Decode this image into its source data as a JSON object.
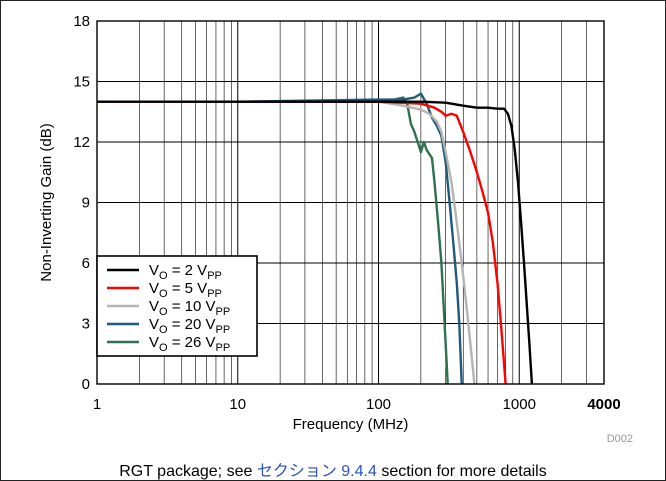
{
  "caption": {
    "before": "RGT package; see ",
    "link_word": "セクション",
    "link_number": "9.4.4",
    "after": " section for more details"
  },
  "colors": {
    "series": [
      "#000000",
      "#ff0000",
      "#b4b4b4",
      "#1f5a7a",
      "#2e7050"
    ],
    "axis": "#000000",
    "grid": "#000000",
    "figure_id": "#9a9a9a",
    "link": "#2a52be"
  },
  "chart_data": {
    "type": "line",
    "xlabel": "Frequency (MHz)",
    "ylabel": "Non-Inverting Gain (dB)",
    "xscale": "log",
    "xlim": [
      1,
      4000
    ],
    "ylim": [
      0,
      18
    ],
    "x_ticks": [
      1,
      10,
      100,
      1000,
      4000
    ],
    "x_tick_labels": [
      "1",
      "10",
      "100",
      "1000",
      "4000"
    ],
    "y_ticks": [
      0,
      3,
      6,
      9,
      12,
      15,
      18
    ],
    "y_tick_labels": [
      "0",
      "3",
      "6",
      "9",
      "12",
      "15",
      "18"
    ],
    "grid": true,
    "legend_position": "bottom-left",
    "figure_id": "D002",
    "series": [
      {
        "name": "V_O = 2 V_PP",
        "legend": {
          "main": "V",
          "sub1": "O",
          "mid": " = 2 V",
          "sub2": "PP"
        },
        "points": [
          [
            1,
            14.0
          ],
          [
            10,
            14.0
          ],
          [
            100,
            14.0
          ],
          [
            200,
            14.0
          ],
          [
            300,
            13.95
          ],
          [
            400,
            13.8
          ],
          [
            500,
            13.7
          ],
          [
            600,
            13.7
          ],
          [
            700,
            13.65
          ],
          [
            780,
            13.65
          ],
          [
            830,
            13.4
          ],
          [
            880,
            12.8
          ],
          [
            930,
            11.6
          ],
          [
            980,
            10.0
          ],
          [
            1030,
            8.0
          ],
          [
            1080,
            6.0
          ],
          [
            1130,
            4.0
          ],
          [
            1180,
            2.0
          ],
          [
            1230,
            0.0
          ]
        ]
      },
      {
        "name": "V_O = 5 V_PP",
        "legend": {
          "main": "V",
          "sub1": "O",
          "mid": " = 5 V",
          "sub2": "PP"
        },
        "points": [
          [
            1,
            14.0
          ],
          [
            10,
            14.0
          ],
          [
            100,
            14.0
          ],
          [
            200,
            13.9
          ],
          [
            250,
            13.7
          ],
          [
            280,
            13.5
          ],
          [
            300,
            13.3
          ],
          [
            330,
            13.4
          ],
          [
            360,
            13.3
          ],
          [
            400,
            12.5
          ],
          [
            450,
            11.5
          ],
          [
            500,
            10.5
          ],
          [
            550,
            9.5
          ],
          [
            600,
            8.5
          ],
          [
            650,
            7.0
          ],
          [
            700,
            5.0
          ],
          [
            740,
            3.0
          ],
          [
            780,
            1.0
          ],
          [
            800,
            0.0
          ]
        ]
      },
      {
        "name": "V_O = 10 V_PP",
        "legend": {
          "main": "V",
          "sub1": "O",
          "mid": " = 10 V",
          "sub2": "PP"
        },
        "points": [
          [
            1,
            14.0
          ],
          [
            10,
            14.0
          ],
          [
            100,
            14.0
          ],
          [
            150,
            13.8
          ],
          [
            200,
            13.6
          ],
          [
            230,
            13.4
          ],
          [
            260,
            13.0
          ],
          [
            280,
            12.5
          ],
          [
            300,
            11.5
          ],
          [
            330,
            10.0
          ],
          [
            360,
            8.0
          ],
          [
            390,
            6.0
          ],
          [
            420,
            4.0
          ],
          [
            450,
            2.0
          ],
          [
            480,
            0.0
          ]
        ]
      },
      {
        "name": "V_O = 20 V_PP",
        "legend": {
          "main": "V",
          "sub1": "O",
          "mid": " = 20 V",
          "sub2": "PP"
        },
        "points": [
          [
            1,
            14.0
          ],
          [
            10,
            14.0
          ],
          [
            100,
            14.1
          ],
          [
            150,
            14.1
          ],
          [
            180,
            14.2
          ],
          [
            200,
            14.4
          ],
          [
            220,
            13.9
          ],
          [
            240,
            13.2
          ],
          [
            260,
            12.8
          ],
          [
            280,
            12.3
          ],
          [
            300,
            11.0
          ],
          [
            320,
            9.0
          ],
          [
            340,
            7.0
          ],
          [
            360,
            5.0
          ],
          [
            375,
            3.0
          ],
          [
            385,
            1.0
          ],
          [
            390,
            0.0
          ]
        ]
      },
      {
        "name": "V_O = 26 V_PP",
        "legend": {
          "main": "V",
          "sub1": "O",
          "mid": " = 26 V",
          "sub2": "PP"
        },
        "points": [
          [
            1,
            14.0
          ],
          [
            10,
            14.0
          ],
          [
            100,
            14.0
          ],
          [
            130,
            14.1
          ],
          [
            150,
            14.2
          ],
          [
            160,
            13.9
          ],
          [
            170,
            12.9
          ],
          [
            180,
            12.5
          ],
          [
            200,
            11.5
          ],
          [
            210,
            12.0
          ],
          [
            220,
            11.6
          ],
          [
            240,
            11.2
          ],
          [
            250,
            10.0
          ],
          [
            265,
            8.0
          ],
          [
            280,
            6.0
          ],
          [
            295,
            3.0
          ],
          [
            305,
            1.0
          ],
          [
            310,
            0.0
          ]
        ]
      }
    ]
  }
}
